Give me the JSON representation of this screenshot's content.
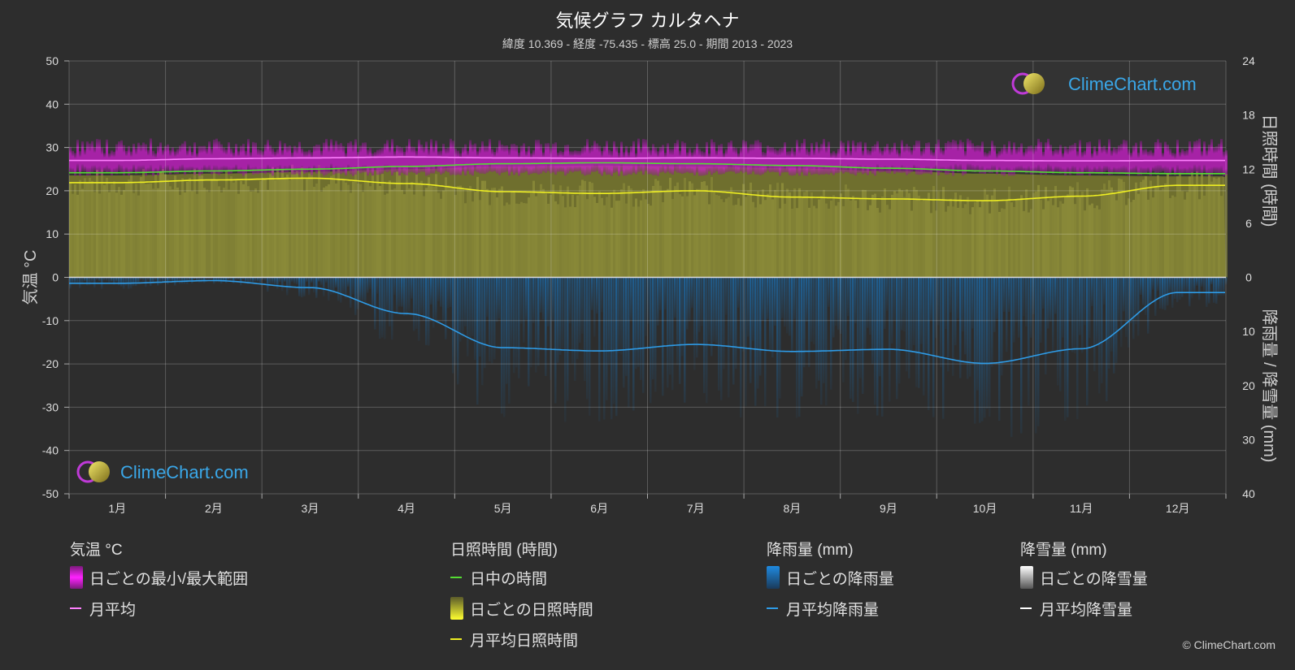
{
  "header": {
    "title": "気候グラフ カルタヘナ",
    "subtitle": "緯度 10.369 - 経度 -75.435 - 標高 25.0 - 期間 2013 - 2023"
  },
  "watermark": "ClimeChart.com",
  "copyright": "© ClimeChart.com",
  "chart_data": {
    "type": "line",
    "categories": [
      "1月",
      "2月",
      "3月",
      "4月",
      "5月",
      "6月",
      "7月",
      "8月",
      "9月",
      "10月",
      "11月",
      "12月"
    ],
    "left_axis": {
      "label": "気温 °C",
      "range": [
        -50,
        50
      ],
      "ticks": [
        50,
        40,
        30,
        20,
        10,
        0,
        -10,
        -20,
        -30,
        -40,
        -50
      ]
    },
    "right_axis_top": {
      "label": "日照時間 (時間)",
      "range": [
        0,
        24
      ],
      "ticks": [
        24,
        18,
        12,
        6,
        0
      ]
    },
    "right_axis_bottom": {
      "label": "降雨量 / 降雪量 (mm)",
      "range": [
        0,
        40
      ],
      "ticks": [
        0,
        10,
        20,
        30,
        40
      ]
    },
    "grid": true,
    "series": [
      {
        "name": "月平均",
        "axis": "temperature",
        "color": "#ff80ff",
        "values": [
          27.0,
          27.4,
          27.6,
          27.8,
          27.6,
          27.5,
          27.6,
          27.5,
          27.3,
          27.0,
          26.9,
          27.0
        ]
      },
      {
        "name": "日中の時間",
        "axis": "sunshine",
        "color": "#55dd33",
        "values": [
          11.6,
          11.8,
          12.0,
          12.3,
          12.6,
          12.7,
          12.6,
          12.4,
          12.1,
          11.8,
          11.6,
          11.5
        ]
      },
      {
        "name": "月平均日照時間",
        "axis": "sunshine",
        "color": "#eeee22",
        "values": [
          10.5,
          10.8,
          11.0,
          10.4,
          9.5,
          9.3,
          9.6,
          8.9,
          8.7,
          8.5,
          9.0,
          10.2
        ]
      },
      {
        "name": "月平均降雨量",
        "axis": "precipitation",
        "color": "#2e9be6",
        "values": [
          1.1,
          0.6,
          1.9,
          6.7,
          13.0,
          13.6,
          12.4,
          13.7,
          13.3,
          15.9,
          13.2,
          2.8
        ]
      }
    ],
    "temp_range": {
      "name": "日ごとの最小/最大範囲",
      "min": 24.0,
      "max": 30.0,
      "color": "#cc22cc"
    }
  },
  "legend": {
    "groups": [
      {
        "title": "気温 °C",
        "items": [
          {
            "kind": "box",
            "label": "日ごとの最小/最大範囲",
            "color": "#e010e0"
          },
          {
            "kind": "line",
            "label": "月平均",
            "color": "#ff80ff"
          }
        ]
      },
      {
        "title": "日照時間 (時間)",
        "items": [
          {
            "kind": "line",
            "label": "日中の時間",
            "color": "#55dd33"
          },
          {
            "kind": "box",
            "label": "日ごとの日照時間",
            "color": "#d8d820"
          },
          {
            "kind": "line",
            "label": "月平均日照時間",
            "color": "#eeee22"
          }
        ]
      },
      {
        "title": "降雨量 (mm)",
        "items": [
          {
            "kind": "box",
            "label": "日ごとの降雨量",
            "color": "#1f8ae0"
          },
          {
            "kind": "line",
            "label": "月平均降雨量",
            "color": "#2e9be6"
          }
        ]
      },
      {
        "title": "降雪量 (mm)",
        "items": [
          {
            "kind": "box",
            "label": "日ごとの降雪量",
            "color": "#dddddd"
          },
          {
            "kind": "line",
            "label": "月平均降雪量",
            "color": "#ffffff"
          }
        ]
      }
    ]
  }
}
